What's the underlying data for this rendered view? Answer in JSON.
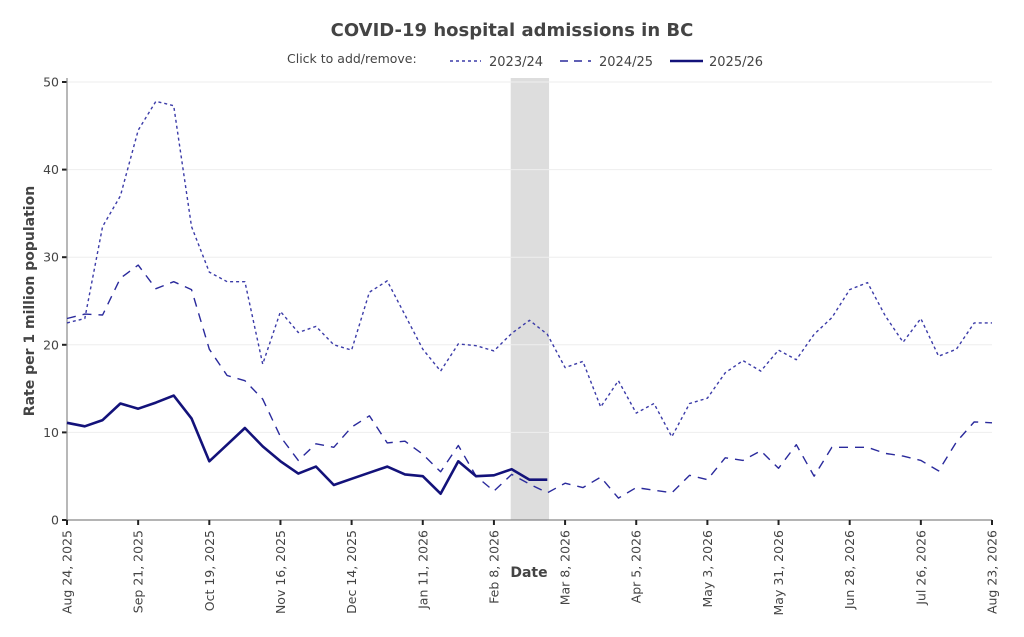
{
  "chart_data": {
    "type": "line",
    "title": "COVID-19 hospital admissions in BC",
    "legend_prefix": "Click to add/remove:",
    "legend_position": "top-center",
    "xlabel": "Date",
    "ylabel": "Rate per 1 million population",
    "ylim": [
      0,
      50
    ],
    "yticks": [
      0,
      10,
      20,
      30,
      40,
      50
    ],
    "xlim": [
      "Aug 24, 2025",
      "Aug 23, 2026"
    ],
    "x_step": "weekly",
    "x_tick_labels": [
      "Aug 24, 2025",
      "Sep 21, 2025",
      "Oct 19, 2025",
      "Nov 16, 2025",
      "Dec 14, 2025",
      "Jan 11, 2026",
      "Feb 8, 2026",
      "Mar 8, 2026",
      "Apr 5, 2026",
      "May 3, 2026",
      "May 31, 2026",
      "Jun 28, 2026",
      "Jul 26, 2026",
      "Aug 23, 2026"
    ],
    "x_tick_week_index": [
      0,
      4,
      8,
      12,
      16,
      20,
      24,
      28,
      32,
      36,
      40,
      44,
      48,
      52
    ],
    "grid": "horizontal",
    "shaded_region": {
      "start_week": 25,
      "end_week": 27.1,
      "color": "#dddddd"
    },
    "line_color": "#13127a",
    "series": [
      {
        "name": "2023/24",
        "style": "dotted",
        "color": "#3b3ba8",
        "values": [
          22.5,
          23.0,
          33.5,
          37.0,
          44.5,
          47.8,
          47.3,
          33.5,
          28.3,
          27.2,
          27.2,
          17.8,
          23.8,
          21.4,
          22.1,
          20.0,
          19.4,
          26.0,
          27.3,
          23.4,
          19.5,
          17.0,
          20.1,
          19.9,
          19.3,
          21.3,
          22.8,
          21.2,
          17.4,
          18.1,
          12.9,
          15.9,
          12.2,
          13.3,
          9.5,
          13.3,
          13.9,
          16.8,
          18.2,
          17.0,
          19.4,
          18.3,
          21.2,
          23.1,
          26.3,
          27.1,
          23.3,
          20.3,
          23.0,
          18.7,
          19.5,
          22.5,
          22.5
        ]
      },
      {
        "name": "2024/25",
        "style": "dashed",
        "color": "#2a2a9c",
        "values": [
          23.0,
          23.5,
          23.4,
          27.6,
          29.1,
          26.4,
          27.2,
          26.3,
          19.5,
          16.5,
          15.9,
          13.8,
          9.5,
          6.8,
          8.7,
          8.3,
          10.6,
          11.9,
          8.8,
          9.0,
          7.5,
          5.5,
          8.5,
          5.0,
          3.3,
          5.2,
          4.1,
          3.1,
          4.2,
          3.7,
          4.9,
          2.5,
          3.7,
          3.4,
          3.1,
          5.1,
          4.6,
          7.1,
          6.8,
          7.9,
          5.9,
          8.6,
          5.0,
          8.3,
          8.3,
          8.3,
          7.6,
          7.3,
          6.8,
          5.6,
          8.9,
          11.2,
          11.1
        ]
      },
      {
        "name": "2025/26",
        "style": "solid",
        "color": "#13127a",
        "values": [
          11.1,
          10.7,
          11.4,
          13.3,
          12.7,
          13.4,
          14.2,
          11.6,
          6.7,
          8.6,
          10.5,
          8.4,
          6.7,
          5.3,
          6.1,
          4.0,
          4.7,
          5.4,
          6.1,
          5.2,
          5.0,
          3.0,
          6.7,
          5.0,
          5.1,
          5.8,
          4.6,
          4.6
        ]
      }
    ]
  }
}
